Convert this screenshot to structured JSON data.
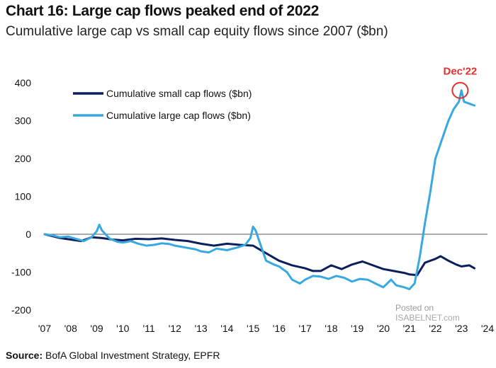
{
  "header": {
    "title": "Chart 16: Large cap flows peaked end of 2022",
    "subtitle": "Cumulative large cap vs small cap equity flows since 2007 ($bn)"
  },
  "footer": {
    "source_label": "Source:",
    "source_text": "BofA Global Investment Strategy, EPFR"
  },
  "watermark": {
    "line1": "Posted on",
    "line2": "ISABELNET.com"
  },
  "colors": {
    "small_cap": "#0b1f5c",
    "large_cap": "#38a8e0",
    "annotation": "#e03030",
    "zero_line": "#555555"
  },
  "chart_data": {
    "type": "line",
    "title": "Chart 16: Large cap flows peaked end of 2022",
    "subtitle": "Cumulative large cap vs small cap equity flows since 2007 ($bn)",
    "xlabel": "",
    "ylabel": "",
    "xlim": [
      2007,
      2024
    ],
    "ylim": [
      -200,
      400
    ],
    "x_tick_values": [
      2007,
      2008,
      2009,
      2010,
      2011,
      2012,
      2013,
      2014,
      2015,
      2016,
      2017,
      2018,
      2019,
      2020,
      2021,
      2022,
      2023,
      2024
    ],
    "x_tick_labels": [
      "'07",
      "'08",
      "'09",
      "'10",
      "'11",
      "'12",
      "'13",
      "'14",
      "'15",
      "'16",
      "'17",
      "'18",
      "'19",
      "'20",
      "'21",
      "'22",
      "'23",
      "'24"
    ],
    "y_tick_values": [
      400,
      300,
      200,
      100,
      0,
      -100,
      -200
    ],
    "y_tick_labels": [
      "400",
      "300",
      "200",
      "100",
      "0",
      "-100",
      "-200"
    ],
    "grid": false,
    "legend": "top-left",
    "series": [
      {
        "name": "Cumulative small cap flows ($bn)",
        "x": [
          2007.0,
          2007.3,
          2007.6,
          2008.0,
          2008.4,
          2008.8,
          2009.2,
          2009.6,
          2010.0,
          2010.5,
          2011.0,
          2011.5,
          2012.0,
          2012.5,
          2013.0,
          2013.5,
          2014.0,
          2014.5,
          2015.0,
          2015.5,
          2016.0,
          2016.5,
          2017.0,
          2017.3,
          2017.6,
          2018.0,
          2018.4,
          2018.8,
          2019.2,
          2019.6,
          2020.0,
          2020.4,
          2020.8,
          2021.0,
          2021.3,
          2021.6,
          2022.0,
          2022.2,
          2022.5,
          2022.8,
          2023.0,
          2023.3,
          2023.5
        ],
        "values": [
          0,
          -5,
          -10,
          -14,
          -18,
          -8,
          -10,
          -14,
          -16,
          -12,
          -13,
          -11,
          -15,
          -18,
          -25,
          -30,
          -25,
          -28,
          -30,
          -50,
          -70,
          -82,
          -90,
          -97,
          -97,
          -82,
          -92,
          -80,
          -72,
          -82,
          -92,
          -97,
          -102,
          -106,
          -108,
          -75,
          -65,
          -58,
          -70,
          -80,
          -85,
          -82,
          -90
        ]
      },
      {
        "name": "Cumulative large cap flows ($bn)",
        "x": [
          2007.0,
          2007.3,
          2007.6,
          2007.9,
          2008.2,
          2008.5,
          2008.8,
          2009.0,
          2009.1,
          2009.2,
          2009.5,
          2009.8,
          2010.0,
          2010.3,
          2010.6,
          2010.9,
          2011.2,
          2011.5,
          2011.8,
          2012.0,
          2012.4,
          2012.8,
          2013.0,
          2013.3,
          2013.6,
          2014.0,
          2014.4,
          2014.7,
          2014.9,
          2015.0,
          2015.1,
          2015.3,
          2015.5,
          2015.8,
          2016.0,
          2016.3,
          2016.5,
          2016.8,
          2017.0,
          2017.3,
          2017.6,
          2017.9,
          2018.2,
          2018.5,
          2018.8,
          2019.1,
          2019.4,
          2019.7,
          2020.0,
          2020.3,
          2020.5,
          2020.8,
          2021.0,
          2021.2,
          2021.4,
          2021.6,
          2021.8,
          2022.0,
          2022.3,
          2022.5,
          2022.7,
          2022.9,
          2023.0,
          2023.1,
          2023.3,
          2023.5
        ],
        "values": [
          0,
          -3,
          -8,
          -6,
          -12,
          -18,
          -8,
          8,
          25,
          10,
          -12,
          -20,
          -22,
          -18,
          -25,
          -30,
          -28,
          -24,
          -26,
          -30,
          -35,
          -40,
          -45,
          -48,
          -38,
          -42,
          -35,
          -28,
          -10,
          20,
          10,
          -30,
          -70,
          -80,
          -85,
          -100,
          -120,
          -130,
          -120,
          -110,
          -112,
          -118,
          -110,
          -115,
          -125,
          -118,
          -120,
          -130,
          -140,
          -120,
          -135,
          -140,
          -145,
          -130,
          -60,
          30,
          110,
          200,
          260,
          300,
          330,
          350,
          380,
          350,
          345,
          340
        ]
      }
    ],
    "annotations": [
      {
        "text": "Dec'22",
        "x": 2022.95,
        "y": 380,
        "style": "red circle"
      }
    ]
  }
}
